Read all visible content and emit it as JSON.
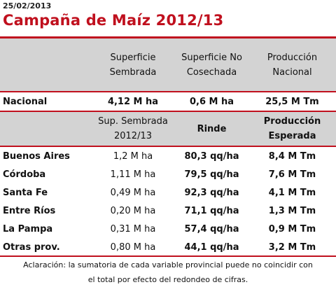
{
  "date": "25/02/2013",
  "title": "Campaña de Maíz 2012/13",
  "national_header": {
    "col1": "Superficie Sembrada",
    "col2": "Superficie No Cosechada",
    "col3": "Producción Nacional"
  },
  "national_row": {
    "label": "Nacional",
    "col1": "4,12 M ha",
    "col2": "0,6 M ha",
    "col3": "25,5 M Tm"
  },
  "province_header": {
    "col1": "Sup. Sembrada 2012/13",
    "col2": "Rinde",
    "col3": "Producción Esperada"
  },
  "provinces": [
    {
      "name": "Buenos Aires",
      "sembrada": "1,2 M ha",
      "rinde": "80,3 qq/ha",
      "produccion": "8,4 M Tm"
    },
    {
      "name": "Córdoba",
      "sembrada": "1,11 M ha",
      "rinde": "79,5 qq/ha",
      "produccion": "7,6 M Tm"
    },
    {
      "name": "Santa Fe",
      "sembrada": "0,49 M ha",
      "rinde": "92,3 qq/ha",
      "produccion": "4,1 M Tm"
    },
    {
      "name": "Entre Ríos",
      "sembrada": "0,20 M ha",
      "rinde": "71,1 qq/ha",
      "produccion": "1,3 M Tm"
    },
    {
      "name": "La Pampa",
      "sembrada": "0,31 M ha",
      "rinde": "57,4 qq/ha",
      "produccion": "0,9 M Tm"
    },
    {
      "name": "Otras prov.",
      "sembrada": "0,80 M ha",
      "rinde": "44,1 qq/ha",
      "produccion": "3,2 M Tm"
    }
  ],
  "note": "Aclaración: la sumatoria de cada variable provincial puede no coincidir con el total por efecto del redondeo de cifras.",
  "colors": {
    "title": "#c0101e",
    "rule": "#c0101e",
    "header_bg": "#d3d3d3"
  }
}
